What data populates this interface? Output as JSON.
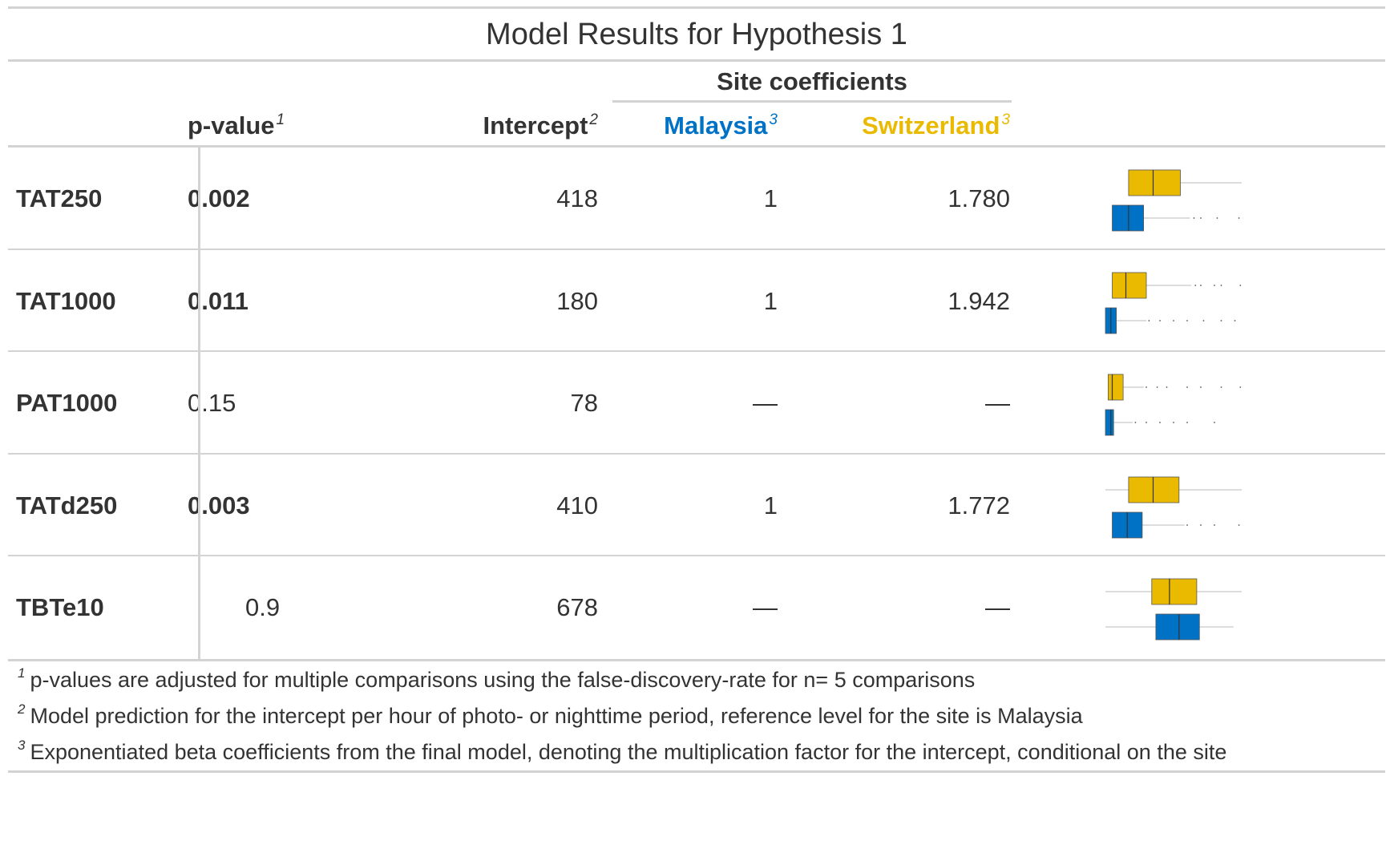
{
  "chart_data": {
    "type": "table",
    "title": "Model Results for Hypothesis 1",
    "spanner": "Site coefficients",
    "columns": [
      {
        "key": "pvalue",
        "label": "p-value",
        "footnote": "1"
      },
      {
        "key": "intercept",
        "label": "Intercept",
        "footnote": "2"
      },
      {
        "key": "malaysia",
        "label": "Malaysia",
        "footnote": "3"
      },
      {
        "key": "switzerland",
        "label": "Switzerland",
        "footnote": "3"
      }
    ],
    "colors": {
      "malaysia": "#0072C6",
      "switzerland": "#EABA00"
    },
    "rows": [
      {
        "label": "TAT250",
        "pvalue": "0.002",
        "significant": true,
        "intercept": "418",
        "malaysia": "1",
        "switzerland": "1.780",
        "box": {
          "switzerland": {
            "min": 0.17,
            "q1": 0.17,
            "median": 0.35,
            "q3": 0.55,
            "max": 1.0,
            "outliers": []
          },
          "malaysia": {
            "min": 0.05,
            "q1": 0.05,
            "median": 0.17,
            "q3": 0.28,
            "max": 0.62,
            "outliers": [
              0.65,
              0.7,
              0.82,
              0.98
            ]
          }
        }
      },
      {
        "label": "TAT1000",
        "pvalue": "0.011",
        "significant": true,
        "intercept": "180",
        "malaysia": "1",
        "switzerland": "1.942",
        "box": {
          "switzerland": {
            "min": 0.05,
            "q1": 0.05,
            "median": 0.15,
            "q3": 0.3,
            "max": 0.63,
            "outliers": [
              0.66,
              0.7,
              0.8,
              0.85,
              0.99
            ]
          },
          "malaysia": {
            "min": 0.0,
            "q1": 0.0,
            "median": 0.04,
            "q3": 0.08,
            "max": 0.3,
            "outliers": [
              0.32,
              0.4,
              0.5,
              0.6,
              0.72,
              0.85,
              0.95
            ]
          }
        }
      },
      {
        "label": "PAT1000",
        "pvalue": "0.15",
        "significant": false,
        "intercept": "78",
        "malaysia": "—",
        "switzerland": "—",
        "box": {
          "switzerland": {
            "min": 0.02,
            "q1": 0.02,
            "median": 0.05,
            "q3": 0.13,
            "max": 0.28,
            "outliers": [
              0.3,
              0.38,
              0.45,
              0.6,
              0.7,
              0.85,
              0.99
            ]
          },
          "malaysia": {
            "min": 0.0,
            "q1": 0.0,
            "median": 0.04,
            "q3": 0.06,
            "max": 0.2,
            "outliers": [
              0.22,
              0.3,
              0.4,
              0.5,
              0.6,
              0.8
            ]
          }
        }
      },
      {
        "label": "TATd250",
        "pvalue": "0.003",
        "significant": true,
        "intercept": "410",
        "malaysia": "1",
        "switzerland": "1.772",
        "box": {
          "switzerland": {
            "min": 0.0,
            "q1": 0.17,
            "median": 0.35,
            "q3": 0.54,
            "max": 1.0,
            "outliers": []
          },
          "malaysia": {
            "min": 0.05,
            "q1": 0.05,
            "median": 0.16,
            "q3": 0.27,
            "max": 0.58,
            "outliers": [
              0.6,
              0.7,
              0.8,
              0.98
            ]
          }
        }
      },
      {
        "label": "TBTe10",
        "pvalue": "0.9",
        "significant": false,
        "intercept": "678",
        "malaysia": "—",
        "switzerland": "—",
        "box": {
          "switzerland": {
            "min": 0.0,
            "q1": 0.34,
            "median": 0.47,
            "q3": 0.67,
            "max": 1.0,
            "outliers": []
          },
          "malaysia": {
            "min": 0.0,
            "q1": 0.37,
            "median": 0.54,
            "q3": 0.69,
            "max": 0.94,
            "outliers": []
          }
        }
      }
    ],
    "footnotes": [
      {
        "mark": "1",
        "text": "p-values are adjusted for multiple comparisons using the false-discovery-rate for n= 5 comparisons"
      },
      {
        "mark": "2",
        "text": "Model prediction for the intercept per hour of photo- or nighttime period, reference level for the site is Malaysia"
      },
      {
        "mark": "3",
        "text": "Exponentiated beta coefficients from the final model, denoting the multiplication factor for the intercept, conditional on the site"
      }
    ]
  }
}
